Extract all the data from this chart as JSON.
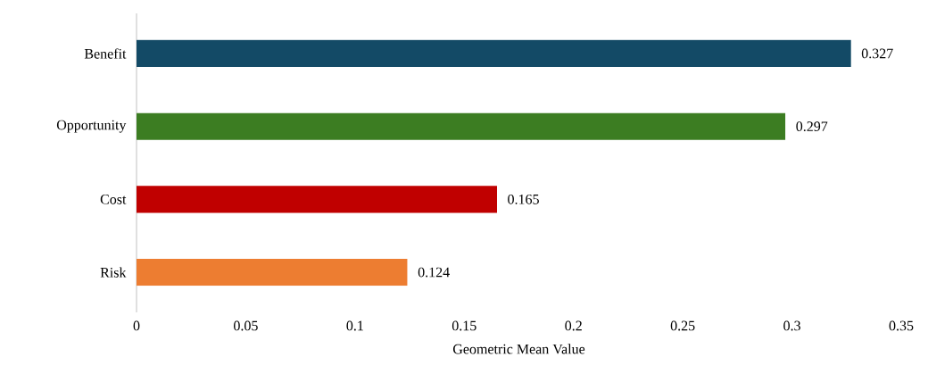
{
  "chart_data": {
    "type": "bar",
    "orientation": "horizontal",
    "categories": [
      "Benefit",
      "Opportunity",
      "Cost",
      "Risk"
    ],
    "values": [
      0.327,
      0.297,
      0.165,
      0.124
    ],
    "colors": [
      "#134a66",
      "#3c7d22",
      "#c00000",
      "#ed7d31"
    ],
    "xlim": [
      0,
      0.35
    ],
    "xticks": [
      0,
      0.05,
      0.1,
      0.15,
      0.2,
      0.25,
      0.3,
      0.35
    ],
    "xlabel": "Geometric Mean Value",
    "data_labels": true
  }
}
